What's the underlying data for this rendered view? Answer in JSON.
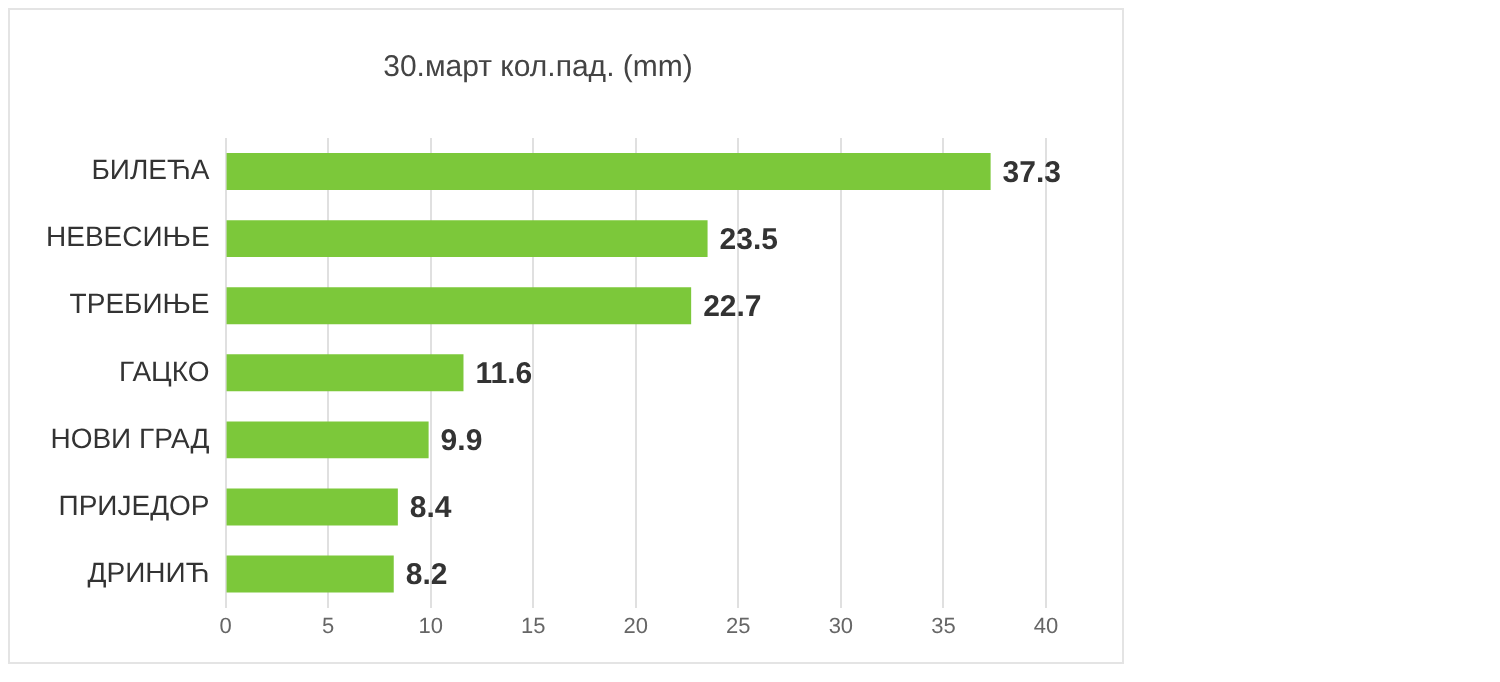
{
  "chart_data": {
    "type": "bar",
    "orientation": "horizontal",
    "title": "30.март кол.пад. (mm)",
    "categories": [
      "БИЛЕЋА",
      "НЕВЕСИЊЕ",
      "ТРЕБИЊЕ",
      "ГАЦКО",
      "НОВИ ГРАД",
      "ПРИЈЕДОР",
      "ДРИНИЋ"
    ],
    "values": [
      37.3,
      23.5,
      22.7,
      11.6,
      9.9,
      8.4,
      8.2
    ],
    "color": "#7cc83a",
    "xlim": [
      0,
      40
    ],
    "xticks": [
      0,
      5,
      10,
      15,
      20,
      25,
      30,
      35,
      40
    ],
    "grid": "x",
    "data_labels": true
  }
}
